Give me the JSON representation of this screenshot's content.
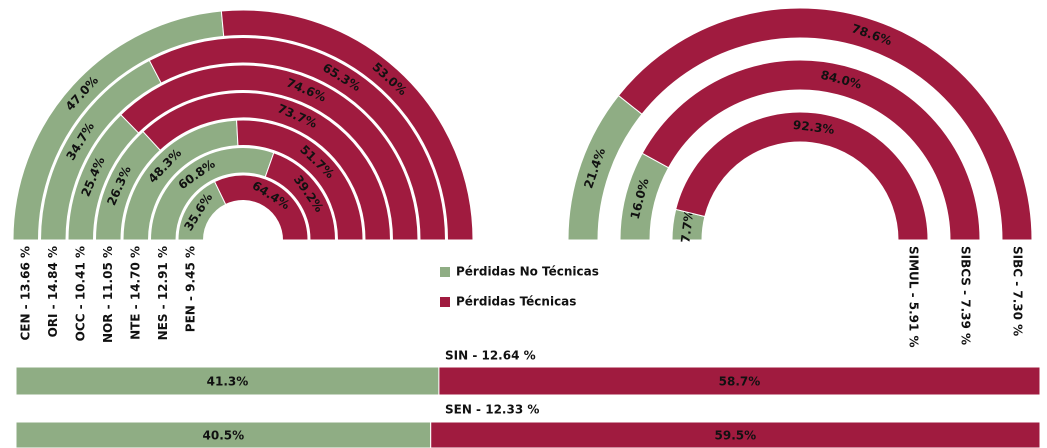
{
  "chart_data": [
    {
      "type": "radial_bar",
      "categories": [
        "CEN - 13.66 %",
        "ORI - 14.84 %",
        "OCC - 10.41 %",
        "NOR - 11.05 %",
        "NTE - 14.70 %",
        "NES - 12.91 %",
        "PEN - 9.45 %"
      ],
      "series": [
        {
          "name": "Pérdidas No Técnicas",
          "color": "#8fad84",
          "values": [
            47.0,
            34.7,
            25.4,
            26.3,
            48.3,
            60.8,
            35.6
          ],
          "value_labels": [
            "47.0%",
            "34.7%",
            "25.4%",
            "26.3%",
            "48.3%",
            "60.8%",
            "35.6%"
          ]
        },
        {
          "name": "Pérdidas Técnicas",
          "color": "#a01b3f",
          "values": [
            53.0,
            65.3,
            74.6,
            73.7,
            51.7,
            39.2,
            64.4
          ],
          "value_labels": [
            "53.0%",
            "65.3%",
            "74.6%",
            "73.7%",
            "51.7%",
            "39.2%",
            "64.4%"
          ]
        }
      ]
    },
    {
      "type": "radial_bar",
      "categories": [
        "SIBC - 7.30 %",
        "SIBCS - 7.39 %",
        "SIMUL - 5.91 %"
      ],
      "series": [
        {
          "name": "Pérdidas No Técnicas",
          "color": "#8fad84",
          "values": [
            21.4,
            16.0,
            7.7
          ],
          "value_labels": [
            "21.4%",
            "16.0%",
            "7.7%"
          ]
        },
        {
          "name": "Pérdidas Técnicas",
          "color": "#a01b3f",
          "values": [
            78.6,
            84.0,
            92.3
          ],
          "value_labels": [
            "78.6%",
            "84.0%",
            "92.3%"
          ]
        }
      ]
    },
    {
      "type": "stacked_bar",
      "categories": [
        "SIN - 12.64 %",
        "SEN - 12.33 %"
      ],
      "series": [
        {
          "name": "Pérdidas No Técnicas",
          "color": "#8fad84",
          "values": [
            41.3,
            40.5
          ],
          "value_labels": [
            "41.3%",
            "40.5%"
          ]
        },
        {
          "name": "Pérdidas Técnicas",
          "color": "#a01b3f",
          "values": [
            58.7,
            59.5
          ],
          "value_labels": [
            "58.7%",
            "59.5%"
          ]
        }
      ]
    }
  ]
}
